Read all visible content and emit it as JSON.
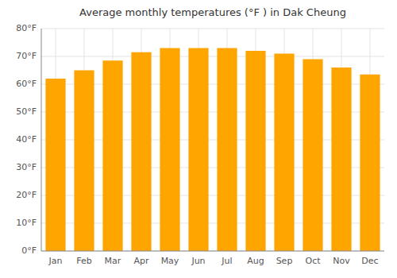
{
  "chart_data": {
    "type": "bar",
    "title": "Average monthly temperatures (°F ) in Dak Cheung",
    "categories": [
      "Jan",
      "Feb",
      "Mar",
      "Apr",
      "May",
      "Jun",
      "Jul",
      "Aug",
      "Sep",
      "Oct",
      "Nov",
      "Dec"
    ],
    "values": [
      62,
      65,
      68.5,
      71.5,
      73,
      73,
      73,
      72,
      71,
      69,
      66,
      63.5
    ],
    "color": "#FFA500",
    "ylim": [
      0,
      80
    ],
    "yticks": [
      {
        "value": 0,
        "label": "0°F"
      },
      {
        "value": 10,
        "label": "10°F"
      },
      {
        "value": 20,
        "label": "20°F"
      },
      {
        "value": 30,
        "label": "30°F"
      },
      {
        "value": 40,
        "label": "40°F"
      },
      {
        "value": 50,
        "label": "50°F"
      },
      {
        "value": 60,
        "label": "60°F"
      },
      {
        "value": 70,
        "label": "70°F"
      },
      {
        "value": 80,
        "label": "80°F"
      }
    ],
    "grid": true
  }
}
